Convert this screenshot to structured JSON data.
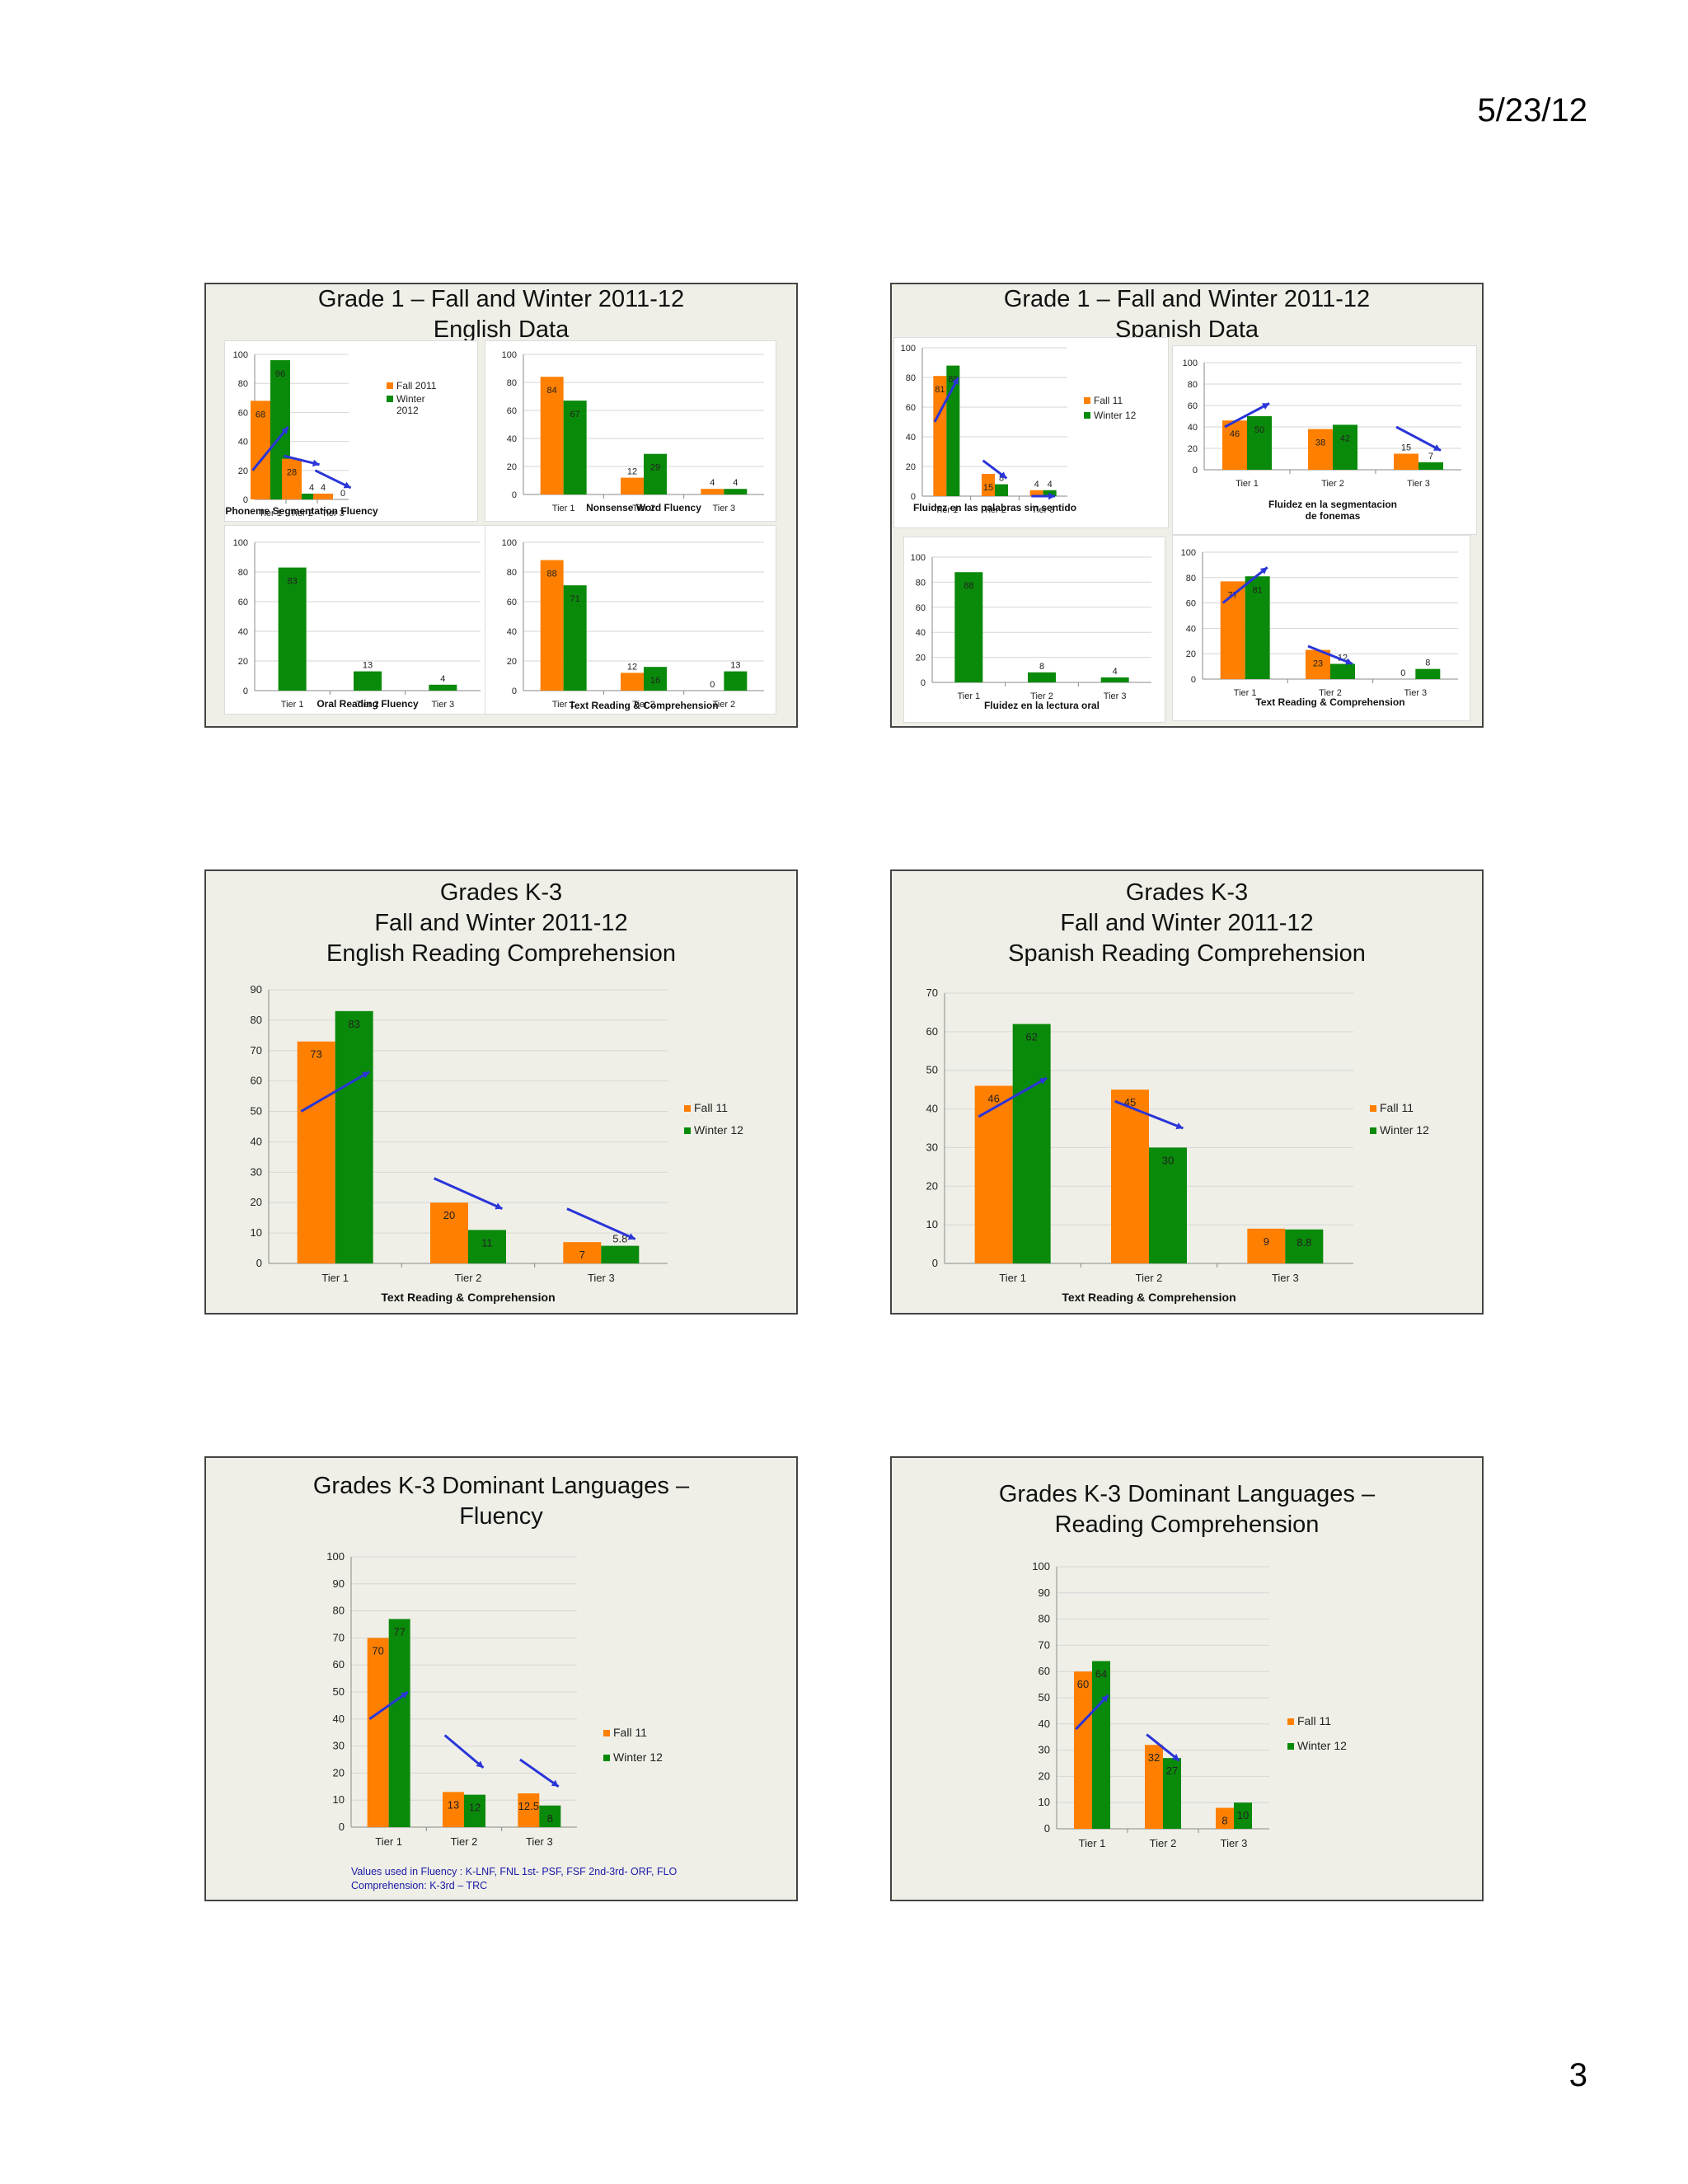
{
  "page": {
    "date": "5/23/12",
    "number": "3"
  },
  "colors": {
    "fall": "#ff7f00",
    "winter": "#0a8a0a",
    "arrow": "#2a35d8",
    "grid": "#d6d6d6"
  },
  "slides": [
    {
      "title": [
        "Grade 1 – Fall and Winter 2011-12",
        "English Data"
      ],
      "charts": [
        {
          "type": "bar",
          "title": "Phoneme Segmentation Fluency",
          "categories": [
            "Tier 1",
            "Tier 2",
            "Tier 3"
          ],
          "ylim": [
            0,
            100
          ],
          "ticks": [
            0,
            20,
            40,
            60,
            80,
            100
          ],
          "series": [
            {
              "name": "Fall 2011",
              "values": [
                68,
                28,
                4
              ]
            },
            {
              "name": "Winter 2012",
              "values": [
                96,
                4,
                0
              ]
            }
          ],
          "legend": [
            "Fall 2011",
            "Winter 2012"
          ],
          "legend_position": "right"
        },
        {
          "type": "bar",
          "title": "Nonsense Word Fluency",
          "categories": [
            "Tier 1",
            "Tier 2",
            "Tier 3"
          ],
          "ylim": [
            0,
            100
          ],
          "ticks": [
            0,
            20,
            40,
            60,
            80,
            100
          ],
          "series": [
            {
              "values": [
                84,
                12,
                4
              ]
            },
            {
              "values": [
                67,
                29,
                4
              ]
            }
          ]
        },
        {
          "type": "bar",
          "title": "Oral Reading Fluency",
          "categories": [
            "Tier 1",
            "Tier 2",
            "Tier 3"
          ],
          "ylim": [
            0,
            100
          ],
          "ticks": [
            0,
            20,
            40,
            60,
            80,
            100
          ],
          "series": [
            {
              "values": [
                83,
                13,
                4
              ]
            }
          ]
        },
        {
          "type": "bar",
          "title": "Text Reading & Comprehension",
          "categories": [
            "Tier 1",
            "Tier 2",
            "Tier 2"
          ],
          "ylim": [
            0,
            100
          ],
          "ticks": [
            0,
            20,
            40,
            60,
            80,
            100
          ],
          "series": [
            {
              "values": [
                88,
                12,
                0
              ]
            },
            {
              "values": [
                71,
                16,
                13
              ]
            }
          ]
        }
      ]
    },
    {
      "title": [
        "Grade 1 – Fall and Winter 2011-12",
        "Spanish Data"
      ],
      "charts": [
        {
          "type": "bar",
          "title": "Fluidez en las palabras sin sentido",
          "categories": [
            "Tier 1",
            "Tier 2",
            "Tier 3"
          ],
          "ylim": [
            0,
            100
          ],
          "ticks": [
            0,
            20,
            40,
            60,
            80,
            100
          ],
          "series": [
            {
              "name": "Fall 11",
              "values": [
                81,
                15,
                4
              ]
            },
            {
              "name": "Winter 12",
              "values": [
                88,
                8,
                4
              ]
            }
          ],
          "legend": [
            "Fall 11",
            "Winter 12"
          ],
          "legend_position": "right"
        },
        {
          "type": "bar",
          "title": "Fluidez en la segmentacion de fonemas",
          "categories": [
            "Tier 1",
            "Tier 2",
            "Tier 3"
          ],
          "ylim": [
            0,
            100
          ],
          "ticks": [
            0,
            20,
            40,
            60,
            80,
            100
          ],
          "series": [
            {
              "values": [
                46,
                38,
                15
              ]
            },
            {
              "values": [
                50,
                42,
                7
              ]
            }
          ]
        },
        {
          "type": "bar",
          "title": "Fluidez en la lectura oral",
          "categories": [
            "Tier 1",
            "Tier 2",
            "Tier 3"
          ],
          "ylim": [
            0,
            100
          ],
          "ticks": [
            0,
            20,
            40,
            60,
            80,
            100
          ],
          "series": [
            {
              "values": [
                88,
                8,
                4
              ]
            }
          ]
        },
        {
          "type": "bar",
          "title": "Text Reading & Comprehension",
          "categories": [
            "Tier 1",
            "Tier 2",
            "Tier 3"
          ],
          "ylim": [
            0,
            100
          ],
          "ticks": [
            0,
            20,
            40,
            60,
            80,
            100
          ],
          "series": [
            {
              "values": [
                77,
                23,
                0
              ]
            },
            {
              "values": [
                81,
                12,
                8
              ]
            }
          ]
        }
      ]
    },
    {
      "title": [
        "Grades K-3",
        "Fall and Winter 2011-12",
        "English Reading Comprehension"
      ],
      "charts": [
        {
          "type": "bar",
          "title": "Text Reading & Comprehension",
          "categories": [
            "Tier 1",
            "Tier 2",
            "Tier 3"
          ],
          "ylim": [
            0,
            90
          ],
          "ticks": [
            0,
            10,
            20,
            30,
            40,
            50,
            60,
            70,
            80,
            90
          ],
          "series": [
            {
              "name": "Fall 11",
              "values": [
                73,
                20,
                7
              ]
            },
            {
              "name": "Winter 12",
              "values": [
                83,
                11,
                5.8
              ]
            }
          ],
          "legend": [
            "Fall 11",
            "Winter 12"
          ],
          "legend_position": "right"
        }
      ]
    },
    {
      "title": [
        "Grades K-3",
        "Fall and Winter 2011-12",
        "Spanish Reading Comprehension"
      ],
      "charts": [
        {
          "type": "bar",
          "title": "Text Reading & Comprehension",
          "categories": [
            "Tier 1",
            "Tier 2",
            "Tier 3"
          ],
          "ylim": [
            0,
            70
          ],
          "ticks": [
            0,
            10,
            20,
            30,
            40,
            50,
            60,
            70
          ],
          "series": [
            {
              "name": "Fall 11",
              "values": [
                46,
                45,
                9
              ]
            },
            {
              "name": "Winter 12",
              "values": [
                62,
                30,
                8.8
              ]
            }
          ],
          "legend": [
            "Fall 11",
            "Winter 12"
          ],
          "legend_position": "right"
        }
      ]
    },
    {
      "title": [
        "Grades K-3 Dominant Languages –",
        "Fluency"
      ],
      "charts": [
        {
          "type": "bar",
          "title": "",
          "categories": [
            "Tier 1",
            "Tier 2",
            "Tier 3"
          ],
          "ylim": [
            0,
            100
          ],
          "ticks": [
            0,
            10,
            20,
            30,
            40,
            50,
            60,
            70,
            80,
            90,
            100
          ],
          "series": [
            {
              "name": "Fall 11",
              "values": [
                70,
                13,
                12.5
              ]
            },
            {
              "name": "Winter 12",
              "values": [
                77,
                12,
                8
              ]
            }
          ],
          "legend": [
            "Fall 11",
            "Winter 12"
          ],
          "legend_position": "right"
        }
      ],
      "note": [
        "Values used in Fluency : K-LNF, FNL  1st- PSF, FSF  2nd-3rd- ORF, FLO",
        "Comprehension: K-3rd  – TRC"
      ]
    },
    {
      "title": [
        "Grades K-3 Dominant Languages –",
        "Reading Comprehension"
      ],
      "charts": [
        {
          "type": "bar",
          "title": "",
          "categories": [
            "Tier 1",
            "Tier 2",
            "Tier 3"
          ],
          "ylim": [
            0,
            100
          ],
          "ticks": [
            0,
            10,
            20,
            30,
            40,
            50,
            60,
            70,
            80,
            90,
            100
          ],
          "series": [
            {
              "name": "Fall 11",
              "values": [
                60,
                32,
                8
              ]
            },
            {
              "name": "Winter 12",
              "values": [
                64,
                27,
                10
              ]
            }
          ],
          "legend": [
            "Fall 11",
            "Winter 12"
          ],
          "legend_position": "right"
        }
      ]
    }
  ],
  "chart_data": [
    {
      "type": "bar",
      "title": "Phoneme Segmentation Fluency",
      "categories": [
        "Tier 1",
        "Tier 2",
        "Tier 3"
      ],
      "ylim": [
        0,
        100
      ],
      "series": [
        {
          "name": "Fall 2011",
          "values": [
            68,
            28,
            4
          ]
        },
        {
          "name": "Winter 2012",
          "values": [
            96,
            4,
            0
          ]
        }
      ]
    },
    {
      "type": "bar",
      "title": "Nonsense Word Fluency",
      "categories": [
        "Tier 1",
        "Tier 2",
        "Tier 3"
      ],
      "ylim": [
        0,
        100
      ],
      "series": [
        {
          "values": [
            84,
            12,
            4
          ]
        },
        {
          "values": [
            67,
            29,
            4
          ]
        }
      ]
    },
    {
      "type": "bar",
      "title": "Oral Reading Fluency",
      "categories": [
        "Tier 1",
        "Tier 2",
        "Tier 3"
      ],
      "ylim": [
        0,
        100
      ],
      "series": [
        {
          "values": [
            83,
            13,
            4
          ]
        }
      ]
    },
    {
      "type": "bar",
      "title": "Text Reading & Comprehension",
      "categories": [
        "Tier 1",
        "Tier 2",
        "Tier 2"
      ],
      "ylim": [
        0,
        100
      ],
      "series": [
        {
          "values": [
            88,
            12,
            0
          ]
        },
        {
          "values": [
            71,
            16,
            13
          ]
        }
      ]
    },
    {
      "type": "bar",
      "title": "Fluidez en las palabras sin sentido",
      "categories": [
        "Tier 1",
        "Tier 2",
        "Tier 3"
      ],
      "ylim": [
        0,
        100
      ],
      "series": [
        {
          "name": "Fall 11",
          "values": [
            81,
            15,
            4
          ]
        },
        {
          "name": "Winter 12",
          "values": [
            88,
            8,
            4
          ]
        }
      ]
    },
    {
      "type": "bar",
      "title": "Fluidez en la segmentacion de fonemas",
      "categories": [
        "Tier 1",
        "Tier 2",
        "Tier 3"
      ],
      "ylim": [
        0,
        100
      ],
      "series": [
        {
          "values": [
            46,
            38,
            15
          ]
        },
        {
          "values": [
            50,
            42,
            7
          ]
        }
      ]
    },
    {
      "type": "bar",
      "title": "Fluidez en la lectura oral",
      "categories": [
        "Tier 1",
        "Tier 2",
        "Tier 3"
      ],
      "ylim": [
        0,
        100
      ],
      "series": [
        {
          "values": [
            88,
            8,
            4
          ]
        }
      ]
    },
    {
      "type": "bar",
      "title": "Text Reading & Comprehension",
      "categories": [
        "Tier 1",
        "Tier 2",
        "Tier 3"
      ],
      "ylim": [
        0,
        100
      ],
      "series": [
        {
          "values": [
            77,
            23,
            0
          ]
        },
        {
          "values": [
            81,
            12,
            8
          ]
        }
      ]
    },
    {
      "type": "bar",
      "title": "Text Reading & Comprehension",
      "categories": [
        "Tier 1",
        "Tier 2",
        "Tier 3"
      ],
      "ylim": [
        0,
        90
      ],
      "series": [
        {
          "name": "Fall 11",
          "values": [
            73,
            20,
            7
          ]
        },
        {
          "name": "Winter 12",
          "values": [
            83,
            11,
            5.8
          ]
        }
      ]
    },
    {
      "type": "bar",
      "title": "Text Reading & Comprehension",
      "categories": [
        "Tier 1",
        "Tier 2",
        "Tier 3"
      ],
      "ylim": [
        0,
        70
      ],
      "series": [
        {
          "name": "Fall 11",
          "values": [
            46,
            45,
            9
          ]
        },
        {
          "name": "Winter 12",
          "values": [
            62,
            30,
            8.8
          ]
        }
      ]
    },
    {
      "type": "bar",
      "title": "",
      "categories": [
        "Tier 1",
        "Tier 2",
        "Tier 3"
      ],
      "ylim": [
        0,
        100
      ],
      "series": [
        {
          "name": "Fall 11",
          "values": [
            70,
            13,
            12.5
          ]
        },
        {
          "name": "Winter 12",
          "values": [
            77,
            12,
            8
          ]
        }
      ]
    },
    {
      "type": "bar",
      "title": "",
      "categories": [
        "Tier 1",
        "Tier 2",
        "Tier 3"
      ],
      "ylim": [
        0,
        100
      ],
      "series": [
        {
          "name": "Fall 11",
          "values": [
            60,
            32,
            8
          ]
        },
        {
          "name": "Winter 12",
          "values": [
            64,
            27,
            10
          ]
        }
      ]
    }
  ]
}
